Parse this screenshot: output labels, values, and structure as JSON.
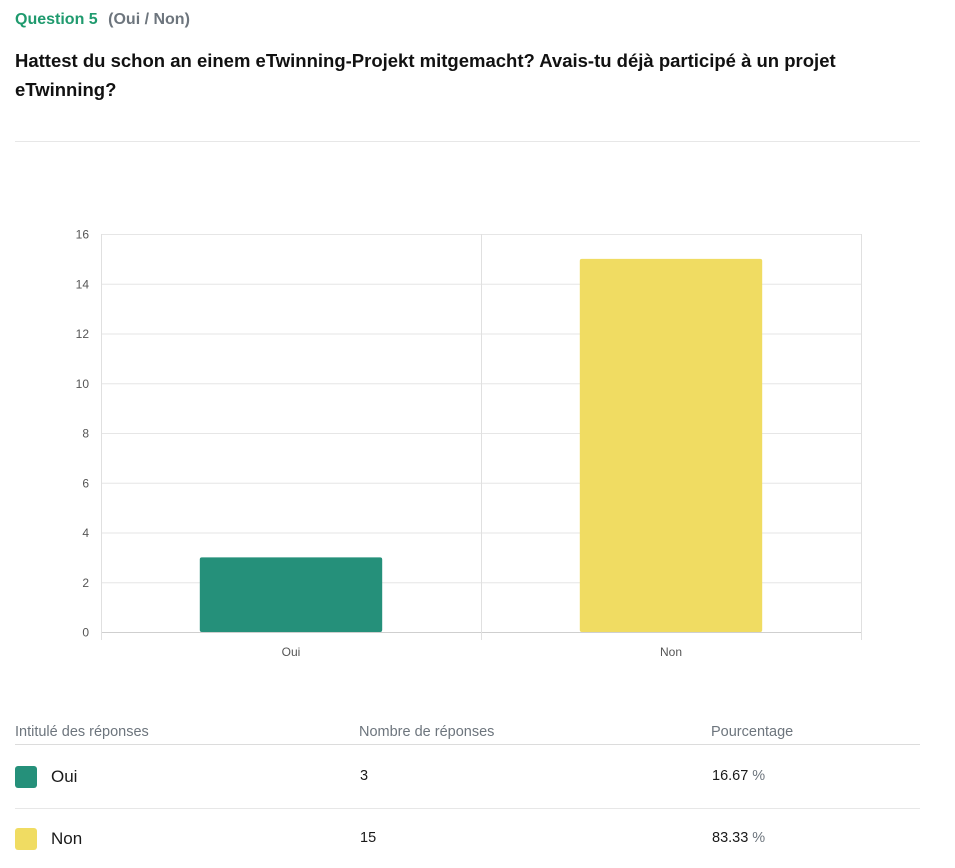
{
  "question": {
    "number_label": "Question 5",
    "type_label": "(Oui / Non)",
    "title": "Hattest du schon an einem eTwinning-Projekt mitgemacht? Avais-tu déjà participé à un projet eTwinning?"
  },
  "chart_data": {
    "type": "bar",
    "title": "",
    "xlabel": "",
    "ylabel": "",
    "categories": [
      "Oui",
      "Non"
    ],
    "values": [
      3,
      15
    ],
    "colors": [
      "#25907a",
      "#f0dc62"
    ],
    "ylim": [
      0,
      16
    ],
    "yticks": [
      0,
      2,
      4,
      6,
      8,
      10,
      12,
      14,
      16
    ],
    "grid": true,
    "legend": "none"
  },
  "table": {
    "headers": [
      "Intitulé des réponses",
      "Nombre de réponses",
      "Pourcentage"
    ],
    "rows": [
      {
        "label": "Oui",
        "count": "3",
        "percent": "16.67",
        "percent_unit": "%",
        "color": "#25907a"
      },
      {
        "label": "Non",
        "count": "15",
        "percent": "83.33",
        "percent_unit": "%",
        "color": "#f0dc62"
      }
    ]
  }
}
